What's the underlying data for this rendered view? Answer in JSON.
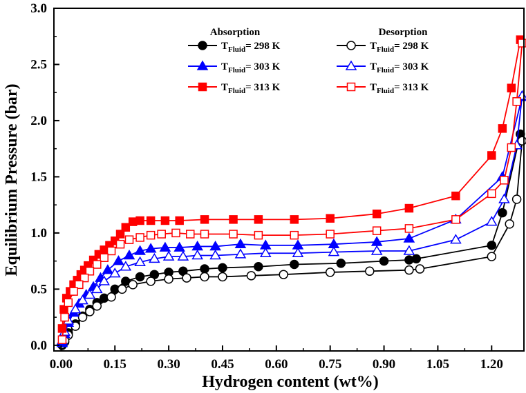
{
  "chart_data": {
    "type": "line",
    "title": "",
    "xlabel": "Hydrogen content (wt%)",
    "ylabel": "Equilibrium Pressure (bar)",
    "xlim": [
      -0.02,
      1.29
    ],
    "ylim": [
      -0.05,
      3.0
    ],
    "x_ticks": [
      0.0,
      0.15,
      0.3,
      0.45,
      0.6,
      0.75,
      0.9,
      1.05,
      1.2
    ],
    "x_tick_labels": [
      "0.00",
      "0.15",
      "0.30",
      "0.45",
      "0.60",
      "0.75",
      "0.90",
      "1.05",
      "1.20"
    ],
    "y_ticks": [
      0.0,
      0.5,
      1.0,
      1.5,
      2.0,
      2.5,
      3.0
    ],
    "y_tick_labels": [
      "0.0",
      "0.5",
      "1.0",
      "1.5",
      "2.0",
      "2.5",
      "3.0"
    ],
    "legend": {
      "absorption_header": "Absorption",
      "desorption_header": "Desorption",
      "label_prefix": "T",
      "label_subscript": "Fluid",
      "label_eq": "= "
    },
    "series": [
      {
        "name": "Absorption 298 K",
        "group": "absorption",
        "temp": "298 K",
        "color": "#000000",
        "marker": "circle",
        "filled": true,
        "x": [
          0.003,
          0.01,
          0.02,
          0.04,
          0.06,
          0.08,
          0.1,
          0.12,
          0.15,
          0.18,
          0.22,
          0.26,
          0.3,
          0.34,
          0.4,
          0.45,
          0.55,
          0.65,
          0.78,
          0.9,
          0.97,
          0.99,
          1.2,
          1.23,
          1.28
        ],
        "y": [
          0.0,
          0.03,
          0.11,
          0.19,
          0.26,
          0.32,
          0.38,
          0.42,
          0.5,
          0.57,
          0.61,
          0.63,
          0.65,
          0.66,
          0.68,
          0.69,
          0.7,
          0.72,
          0.73,
          0.75,
          0.76,
          0.77,
          0.89,
          1.18,
          1.88
        ]
      },
      {
        "name": "Desorption 298 K",
        "group": "desorption",
        "temp": "298 K",
        "color": "#000000",
        "marker": "circle",
        "filled": false,
        "x": [
          1.285,
          1.27,
          1.25,
          1.2,
          1.0,
          0.97,
          0.86,
          0.75,
          0.62,
          0.53,
          0.45,
          0.4,
          0.35,
          0.3,
          0.25,
          0.2,
          0.17,
          0.14,
          0.1,
          0.08,
          0.06,
          0.04,
          0.02,
          0.01,
          0.003
        ],
        "y": [
          1.82,
          1.3,
          1.08,
          0.79,
          0.68,
          0.67,
          0.66,
          0.65,
          0.63,
          0.62,
          0.61,
          0.61,
          0.6,
          0.59,
          0.57,
          0.54,
          0.5,
          0.43,
          0.35,
          0.3,
          0.25,
          0.17,
          0.09,
          0.04,
          0.01
        ]
      },
      {
        "name": "Absorption 303 K",
        "group": "absorption",
        "temp": "303 K",
        "color": "#0000ff",
        "marker": "triangle",
        "filled": true,
        "x": [
          0.003,
          0.01,
          0.02,
          0.035,
          0.05,
          0.07,
          0.09,
          0.11,
          0.13,
          0.16,
          0.19,
          0.22,
          0.25,
          0.29,
          0.33,
          0.38,
          0.43,
          0.5,
          0.57,
          0.66,
          0.76,
          0.88,
          0.97,
          1.1,
          1.23,
          1.285
        ],
        "y": [
          0.02,
          0.1,
          0.2,
          0.29,
          0.37,
          0.45,
          0.52,
          0.6,
          0.67,
          0.75,
          0.8,
          0.84,
          0.86,
          0.87,
          0.87,
          0.88,
          0.88,
          0.9,
          0.89,
          0.89,
          0.9,
          0.92,
          0.95,
          1.12,
          1.5,
          2.21
        ]
      },
      {
        "name": "Desorption 303 K",
        "group": "desorption",
        "temp": "303 K",
        "color": "#0000ff",
        "marker": "triangle",
        "filled": false,
        "x": [
          1.285,
          1.27,
          1.235,
          1.2,
          1.1,
          0.97,
          0.88,
          0.76,
          0.66,
          0.57,
          0.5,
          0.43,
          0.38,
          0.34,
          0.3,
          0.26,
          0.22,
          0.18,
          0.15,
          0.12,
          0.1,
          0.08,
          0.06,
          0.04,
          0.02,
          0.01,
          0.003
        ],
        "y": [
          2.22,
          1.78,
          1.3,
          1.1,
          0.94,
          0.84,
          0.84,
          0.83,
          0.82,
          0.82,
          0.81,
          0.8,
          0.8,
          0.79,
          0.79,
          0.77,
          0.74,
          0.7,
          0.64,
          0.57,
          0.5,
          0.45,
          0.4,
          0.32,
          0.22,
          0.12,
          0.04
        ]
      },
      {
        "name": "Absorption 313 K",
        "group": "absorption",
        "temp": "313 K",
        "color": "#ff0000",
        "marker": "square",
        "filled": true,
        "x": [
          0.003,
          0.008,
          0.015,
          0.025,
          0.035,
          0.045,
          0.055,
          0.065,
          0.075,
          0.09,
          0.105,
          0.12,
          0.135,
          0.15,
          0.165,
          0.18,
          0.2,
          0.22,
          0.25,
          0.29,
          0.33,
          0.4,
          0.48,
          0.55,
          0.65,
          0.75,
          0.88,
          0.97,
          1.1,
          1.2,
          1.23,
          1.255,
          1.28
        ],
        "y": [
          0.15,
          0.32,
          0.42,
          0.48,
          0.54,
          0.58,
          0.63,
          0.67,
          0.71,
          0.76,
          0.81,
          0.85,
          0.89,
          0.93,
          0.99,
          1.05,
          1.1,
          1.11,
          1.11,
          1.11,
          1.11,
          1.12,
          1.12,
          1.12,
          1.12,
          1.13,
          1.17,
          1.22,
          1.33,
          1.69,
          1.93,
          2.29,
          2.72
        ]
      },
      {
        "name": "Desorption 313 K",
        "group": "desorption",
        "temp": "313 K",
        "color": "#ff0000",
        "marker": "square",
        "filled": false,
        "x": [
          1.285,
          1.27,
          1.255,
          1.235,
          1.2,
          1.1,
          0.97,
          0.88,
          0.75,
          0.65,
          0.55,
          0.48,
          0.4,
          0.36,
          0.32,
          0.28,
          0.25,
          0.22,
          0.19,
          0.165,
          0.14,
          0.12,
          0.1,
          0.08,
          0.065,
          0.05,
          0.035,
          0.02,
          0.01,
          0.003
        ],
        "y": [
          2.69,
          2.17,
          1.76,
          1.47,
          1.35,
          1.12,
          1.04,
          1.02,
          0.99,
          0.98,
          0.98,
          0.99,
          0.99,
          0.99,
          1.0,
          0.99,
          0.98,
          0.96,
          0.94,
          0.9,
          0.84,
          0.78,
          0.72,
          0.66,
          0.6,
          0.54,
          0.48,
          0.38,
          0.25,
          0.05
        ]
      }
    ]
  }
}
